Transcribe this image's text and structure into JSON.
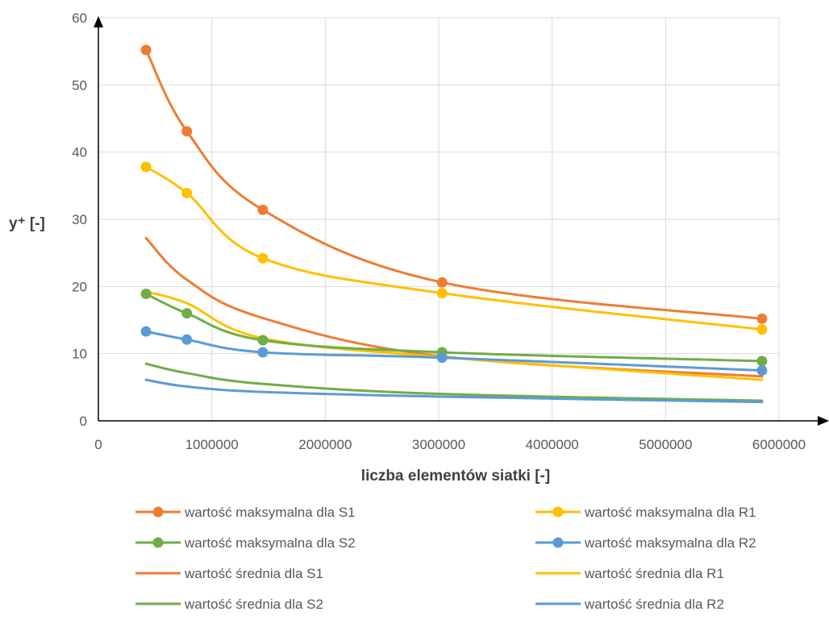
{
  "chart_data": {
    "type": "line",
    "xlabel": "liczba elementów siatki [-]",
    "ylabel": "y⁺ [-]",
    "xlim": [
      0,
      6000000
    ],
    "ylim": [
      0,
      60
    ],
    "x_ticks": [
      "0",
      "1000000",
      "2000000",
      "3000000",
      "4000000",
      "5000000",
      "6000000"
    ],
    "y_ticks": [
      "0",
      "10",
      "20",
      "30",
      "40",
      "50",
      "60"
    ],
    "grid": true,
    "legend_position": "bottom",
    "x": [
      420000,
      780000,
      1450000,
      3030000,
      5850000
    ],
    "series": [
      {
        "name": "wartość maksymalna dla S1",
        "color": "#ED7D31",
        "markers": true,
        "values": [
          55.2,
          43.1,
          31.4,
          20.6,
          15.2
        ]
      },
      {
        "name": "wartość maksymalna dla R1",
        "color": "#FFC000",
        "markers": true,
        "values": [
          37.8,
          33.9,
          24.2,
          19.0,
          13.6
        ]
      },
      {
        "name": "wartość maksymalna dla S2",
        "color": "#70AD47",
        "markers": true,
        "values": [
          18.9,
          16.0,
          12.0,
          10.2,
          8.9
        ]
      },
      {
        "name": "wartość maksymalna dla R2",
        "color": "#5B9BD5",
        "markers": true,
        "values": [
          13.3,
          12.1,
          10.2,
          9.4,
          7.5
        ]
      },
      {
        "name": "wartość średnia dla S1",
        "color": "#ED7D31",
        "markers": false,
        "values": [
          27.2,
          21.0,
          15.3,
          9.6,
          6.6
        ]
      },
      {
        "name": "wartość średnia dla R1",
        "color": "#FFC000",
        "markers": false,
        "values": [
          19.2,
          17.5,
          12.3,
          9.5,
          6.1
        ]
      },
      {
        "name": "wartość średnia dla S2",
        "color": "#70AD47",
        "markers": false,
        "values": [
          8.5,
          7.1,
          5.5,
          4.0,
          3.0
        ]
      },
      {
        "name": "wartość średnia dla R2",
        "color": "#5B9BD5",
        "markers": false,
        "values": [
          6.1,
          5.1,
          4.3,
          3.6,
          2.8
        ]
      }
    ]
  }
}
